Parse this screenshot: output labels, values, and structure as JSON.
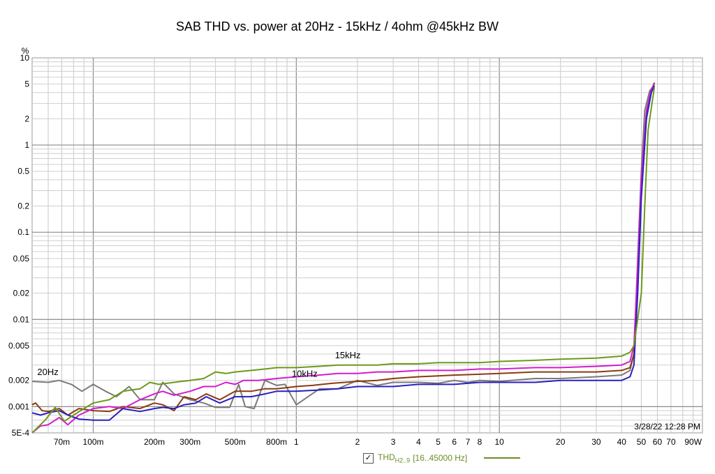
{
  "chart_data": {
    "type": "line",
    "title": "SAB THD vs. power at 20Hz - 15kHz / 4ohm @45kHz BW",
    "ylabel": "%",
    "xunit": "W",
    "xscale": "log",
    "yscale": "log",
    "xlim": [
      0.05,
      100
    ],
    "ylim": [
      0.0005,
      10
    ],
    "grid": true,
    "timestamp": "3/28/22 12:28 PM",
    "x_ticks": [
      {
        "v": 0.07,
        "label": "70m"
      },
      {
        "v": 0.1,
        "label": "100m"
      },
      {
        "v": 0.2,
        "label": "200m"
      },
      {
        "v": 0.3,
        "label": "300m"
      },
      {
        "v": 0.5,
        "label": "500m"
      },
      {
        "v": 0.8,
        "label": "800m"
      },
      {
        "v": 1,
        "label": "1"
      },
      {
        "v": 2,
        "label": "2"
      },
      {
        "v": 3,
        "label": "3"
      },
      {
        "v": 4,
        "label": "4"
      },
      {
        "v": 5,
        "label": "5"
      },
      {
        "v": 6,
        "label": "6"
      },
      {
        "v": 7,
        "label": "7"
      },
      {
        "v": 8,
        "label": "8"
      },
      {
        "v": 10,
        "label": "10"
      },
      {
        "v": 20,
        "label": "20"
      },
      {
        "v": 30,
        "label": "30"
      },
      {
        "v": 40,
        "label": "40"
      },
      {
        "v": 50,
        "label": "50"
      },
      {
        "v": 60,
        "label": "60"
      },
      {
        "v": 70,
        "label": "70"
      },
      {
        "v": 90,
        "label": "90W"
      }
    ],
    "y_ticks": [
      {
        "v": 10,
        "label": "10"
      },
      {
        "v": 5,
        "label": "5"
      },
      {
        "v": 2,
        "label": "2"
      },
      {
        "v": 1,
        "label": "1"
      },
      {
        "v": 0.5,
        "label": "0.5"
      },
      {
        "v": 0.2,
        "label": "0.2"
      },
      {
        "v": 0.1,
        "label": "0.1"
      },
      {
        "v": 0.05,
        "label": "0.05"
      },
      {
        "v": 0.02,
        "label": "0.02"
      },
      {
        "v": 0.01,
        "label": "0.01"
      },
      {
        "v": 0.005,
        "label": "0.005"
      },
      {
        "v": 0.002,
        "label": "0.002"
      },
      {
        "v": 0.001,
        "label": "0.001"
      },
      {
        "v": 0.0005,
        "label": "5E-4"
      }
    ],
    "annotations": [
      {
        "text": "20Hz",
        "x": 0.053,
        "y": 0.0023
      },
      {
        "text": "15kHz",
        "x": 1.55,
        "y": 0.0036
      },
      {
        "text": "10kHz",
        "x": 0.95,
        "y": 0.0022
      }
    ],
    "series": [
      {
        "color": "#7a7a7a",
        "points": [
          [
            0.05,
            0.00195
          ],
          [
            0.06,
            0.0019
          ],
          [
            0.068,
            0.002
          ],
          [
            0.078,
            0.0018
          ],
          [
            0.088,
            0.0015
          ],
          [
            0.1,
            0.0018
          ],
          [
            0.115,
            0.0015
          ],
          [
            0.13,
            0.0013
          ],
          [
            0.15,
            0.0017
          ],
          [
            0.17,
            0.0012
          ],
          [
            0.2,
            0.0012
          ],
          [
            0.22,
            0.0019
          ],
          [
            0.25,
            0.0014
          ],
          [
            0.3,
            0.0012
          ],
          [
            0.35,
            0.0011
          ],
          [
            0.4,
            0.00098
          ],
          [
            0.47,
            0.00098
          ],
          [
            0.52,
            0.0018
          ],
          [
            0.56,
            0.001
          ],
          [
            0.62,
            0.00095
          ],
          [
            0.7,
            0.002
          ],
          [
            0.8,
            0.00175
          ],
          [
            0.88,
            0.0018
          ],
          [
            1.0,
            0.00105
          ],
          [
            1.3,
            0.0016
          ],
          [
            1.6,
            0.0016
          ],
          [
            2.0,
            0.002
          ],
          [
            2.5,
            0.00175
          ],
          [
            3,
            0.0019
          ],
          [
            4,
            0.0019
          ],
          [
            5,
            0.00185
          ],
          [
            6,
            0.002
          ],
          [
            7,
            0.0019
          ],
          [
            8,
            0.002
          ],
          [
            10,
            0.00195
          ],
          [
            15,
            0.0021
          ],
          [
            20,
            0.0021
          ],
          [
            30,
            0.0022
          ],
          [
            40,
            0.0023
          ],
          [
            44,
            0.0026
          ],
          [
            46,
            0.004
          ],
          [
            48,
            0.05
          ],
          [
            50,
            0.5
          ],
          [
            52,
            2.5
          ],
          [
            55,
            4.2
          ],
          [
            57,
            4.6
          ]
        ]
      },
      {
        "color": "#8b3a0e",
        "points": [
          [
            0.05,
            0.00105
          ],
          [
            0.052,
            0.0011
          ],
          [
            0.056,
            0.0009
          ],
          [
            0.06,
            0.00088
          ],
          [
            0.068,
            0.00095
          ],
          [
            0.075,
            0.0008
          ],
          [
            0.085,
            0.00095
          ],
          [
            0.1,
            0.0009
          ],
          [
            0.12,
            0.00088
          ],
          [
            0.14,
            0.001
          ],
          [
            0.17,
            0.00095
          ],
          [
            0.2,
            0.0011
          ],
          [
            0.22,
            0.00105
          ],
          [
            0.25,
            0.0009
          ],
          [
            0.28,
            0.0013
          ],
          [
            0.32,
            0.0012
          ],
          [
            0.36,
            0.0014
          ],
          [
            0.42,
            0.0012
          ],
          [
            0.5,
            0.0015
          ],
          [
            0.6,
            0.0015
          ],
          [
            0.7,
            0.0016
          ],
          [
            0.8,
            0.0016
          ],
          [
            1.0,
            0.0017
          ],
          [
            1.2,
            0.00175
          ],
          [
            1.5,
            0.00185
          ],
          [
            2,
            0.00195
          ],
          [
            2.5,
            0.002
          ],
          [
            3,
            0.0021
          ],
          [
            4,
            0.0022
          ],
          [
            5,
            0.00225
          ],
          [
            6,
            0.0023
          ],
          [
            8,
            0.00235
          ],
          [
            10,
            0.0024
          ],
          [
            15,
            0.0025
          ],
          [
            20,
            0.0025
          ],
          [
            30,
            0.0025
          ],
          [
            40,
            0.0026
          ],
          [
            44,
            0.0028
          ],
          [
            46,
            0.004
          ],
          [
            48,
            0.03
          ],
          [
            50,
            0.3
          ],
          [
            53,
            2.2
          ],
          [
            56,
            4.2
          ],
          [
            58,
            5.2
          ]
        ]
      },
      {
        "color": "#d21dcc",
        "points": [
          [
            0.05,
            0.0005
          ],
          [
            0.055,
            0.0006
          ],
          [
            0.06,
            0.00062
          ],
          [
            0.068,
            0.00075
          ],
          [
            0.075,
            0.00062
          ],
          [
            0.085,
            0.0008
          ],
          [
            0.1,
            0.00095
          ],
          [
            0.12,
            0.001
          ],
          [
            0.14,
            0.00095
          ],
          [
            0.17,
            0.0012
          ],
          [
            0.2,
            0.0014
          ],
          [
            0.22,
            0.0015
          ],
          [
            0.25,
            0.00135
          ],
          [
            0.3,
            0.0015
          ],
          [
            0.35,
            0.0017
          ],
          [
            0.4,
            0.0017
          ],
          [
            0.45,
            0.0019
          ],
          [
            0.5,
            0.0018
          ],
          [
            0.55,
            0.002
          ],
          [
            0.65,
            0.002
          ],
          [
            0.8,
            0.0021
          ],
          [
            1.0,
            0.0022
          ],
          [
            1.3,
            0.0023
          ],
          [
            1.6,
            0.0024
          ],
          [
            2,
            0.0024
          ],
          [
            2.5,
            0.0025
          ],
          [
            3,
            0.0025
          ],
          [
            4,
            0.0026
          ],
          [
            5,
            0.0026
          ],
          [
            6,
            0.0026
          ],
          [
            8,
            0.0027
          ],
          [
            10,
            0.0027
          ],
          [
            15,
            0.0028
          ],
          [
            20,
            0.0028
          ],
          [
            30,
            0.0029
          ],
          [
            40,
            0.003
          ],
          [
            44,
            0.0033
          ],
          [
            46,
            0.005
          ],
          [
            48,
            0.04
          ],
          [
            50,
            0.4
          ],
          [
            53,
            2.5
          ],
          [
            56,
            4.4
          ],
          [
            58,
            5.0
          ]
        ]
      },
      {
        "color": "#2a1fc0",
        "points": [
          [
            0.05,
            0.00085
          ],
          [
            0.055,
            0.0008
          ],
          [
            0.06,
            0.00085
          ],
          [
            0.068,
            0.0009
          ],
          [
            0.075,
            0.0008
          ],
          [
            0.085,
            0.00072
          ],
          [
            0.1,
            0.0007
          ],
          [
            0.12,
            0.0007
          ],
          [
            0.14,
            0.00095
          ],
          [
            0.17,
            0.00088
          ],
          [
            0.2,
            0.00095
          ],
          [
            0.22,
            0.00098
          ],
          [
            0.25,
            0.00095
          ],
          [
            0.28,
            0.00105
          ],
          [
            0.32,
            0.0011
          ],
          [
            0.36,
            0.0013
          ],
          [
            0.42,
            0.0011
          ],
          [
            0.5,
            0.0013
          ],
          [
            0.6,
            0.0013
          ],
          [
            0.7,
            0.0014
          ],
          [
            0.8,
            0.0015
          ],
          [
            1.0,
            0.0015
          ],
          [
            1.3,
            0.00155
          ],
          [
            1.6,
            0.0016
          ],
          [
            2,
            0.0017
          ],
          [
            2.5,
            0.0017
          ],
          [
            3,
            0.0017
          ],
          [
            4,
            0.0018
          ],
          [
            5,
            0.0018
          ],
          [
            6,
            0.0018
          ],
          [
            8,
            0.0019
          ],
          [
            10,
            0.0019
          ],
          [
            15,
            0.0019
          ],
          [
            20,
            0.002
          ],
          [
            30,
            0.002
          ],
          [
            40,
            0.002
          ],
          [
            44,
            0.0022
          ],
          [
            46,
            0.003
          ],
          [
            48,
            0.02
          ],
          [
            50,
            0.25
          ],
          [
            53,
            2.0
          ],
          [
            56,
            4.0
          ],
          [
            58,
            4.8
          ]
        ]
      },
      {
        "color": "#6b9a1a",
        "points": [
          [
            0.05,
            0.0005
          ],
          [
            0.058,
            0.0007
          ],
          [
            0.065,
            0.00098
          ],
          [
            0.072,
            0.00068
          ],
          [
            0.08,
            0.0008
          ],
          [
            0.09,
            0.00095
          ],
          [
            0.1,
            0.0011
          ],
          [
            0.12,
            0.0012
          ],
          [
            0.14,
            0.0015
          ],
          [
            0.17,
            0.0016
          ],
          [
            0.19,
            0.0019
          ],
          [
            0.21,
            0.0018
          ],
          [
            0.25,
            0.0019
          ],
          [
            0.3,
            0.002
          ],
          [
            0.35,
            0.0021
          ],
          [
            0.4,
            0.0025
          ],
          [
            0.45,
            0.0024
          ],
          [
            0.5,
            0.0025
          ],
          [
            0.6,
            0.0026
          ],
          [
            0.7,
            0.0027
          ],
          [
            0.8,
            0.0028
          ],
          [
            1.0,
            0.0028
          ],
          [
            1.3,
            0.0029
          ],
          [
            1.6,
            0.003
          ],
          [
            2,
            0.003
          ],
          [
            2.5,
            0.003
          ],
          [
            3,
            0.0031
          ],
          [
            4,
            0.0031
          ],
          [
            5,
            0.0032
          ],
          [
            6,
            0.0032
          ],
          [
            8,
            0.0032
          ],
          [
            10,
            0.0033
          ],
          [
            15,
            0.0034
          ],
          [
            20,
            0.0035
          ],
          [
            30,
            0.0036
          ],
          [
            40,
            0.0038
          ],
          [
            44,
            0.0042
          ],
          [
            46,
            0.005
          ],
          [
            50,
            0.02
          ],
          [
            52,
            0.2
          ],
          [
            54,
            1.5
          ],
          [
            57,
            3.5
          ],
          [
            58,
            4.6
          ]
        ]
      }
    ]
  },
  "legend": {
    "checkbox": "✓",
    "name": "THD",
    "sub": "H2..9",
    "range": "[16..45000 Hz]"
  }
}
